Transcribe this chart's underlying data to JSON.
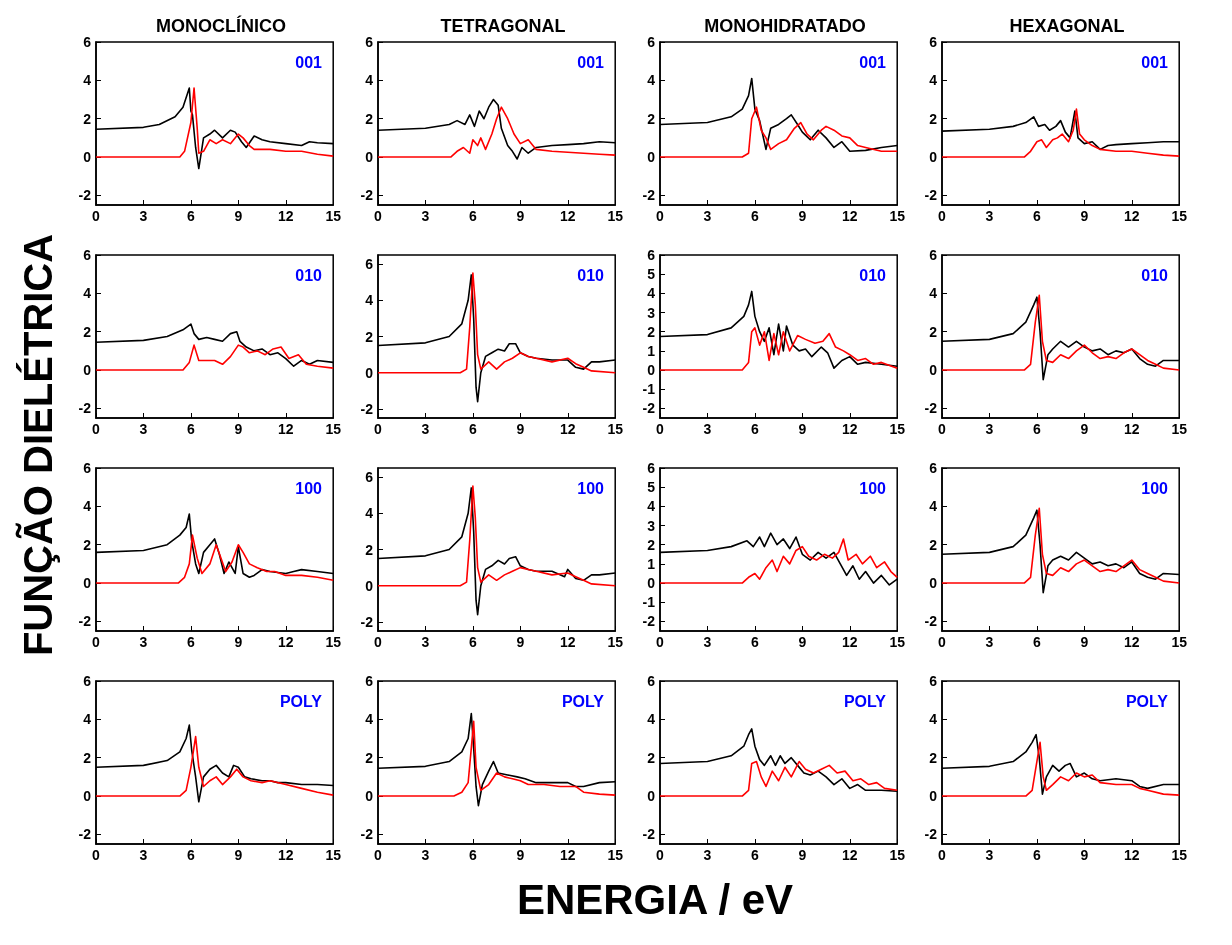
{
  "chart_data": [
    {
      "type": "line",
      "title": "MONOCLÍNICO",
      "ylabel": "FUNÇÃO DIELÉTRICA",
      "annotations": [
        "001"
      ],
      "xlim": [
        0,
        15
      ],
      "xticks": [
        0,
        3,
        6,
        9,
        12,
        15
      ],
      "ylim": [
        -2.5,
        6
      ],
      "yticks": [
        -2,
        0,
        2,
        4,
        6
      ],
      "grid": false,
      "series": [
        {
          "color": "#000000",
          "x": [
            0,
            3,
            4,
            5,
            5.5,
            5.9,
            6.0,
            6.1,
            6.3,
            6.5,
            6.8,
            7.2,
            7.5,
            8,
            8.5,
            8.8,
            9.2,
            9.5,
            10,
            10.5,
            11,
            12,
            13,
            13.5,
            14,
            15
          ],
          "values": [
            1.45,
            1.55,
            1.7,
            2.1,
            2.6,
            3.6,
            2.4,
            2.2,
            0.5,
            -0.6,
            1.0,
            1.2,
            1.4,
            1.0,
            1.4,
            1.3,
            0.8,
            0.5,
            1.1,
            0.9,
            0.8,
            0.7,
            0.6,
            0.8,
            0.75,
            0.7
          ]
        },
        {
          "color": "#ff0000",
          "x": [
            0,
            5.3,
            5.6,
            6.0,
            6.2,
            6.4,
            6.5,
            6.8,
            7.2,
            7.6,
            8,
            8.5,
            9,
            9.3,
            9.7,
            10,
            11,
            12,
            13,
            14,
            15
          ],
          "values": [
            0,
            0,
            0.3,
            1.8,
            3.6,
            1.5,
            0.2,
            0.3,
            0.9,
            0.7,
            0.9,
            0.7,
            1.2,
            1.0,
            0.6,
            0.4,
            0.4,
            0.3,
            0.3,
            0.15,
            0.05
          ]
        }
      ]
    },
    {
      "type": "line",
      "title": "TETRAGONAL",
      "annotations": [
        "001"
      ],
      "xlim": [
        0,
        15
      ],
      "xticks": [
        0,
        3,
        6,
        9,
        12,
        15
      ],
      "ylim": [
        -2.5,
        6
      ],
      "yticks": [
        -2,
        0,
        2,
        4,
        6
      ],
      "grid": false,
      "series": [
        {
          "color": "#000000",
          "x": [
            0,
            3,
            4.5,
            5,
            5.5,
            5.8,
            6.1,
            6.4,
            6.7,
            7.0,
            7.3,
            7.6,
            7.8,
            8.2,
            8.5,
            8.8,
            9.1,
            9.5,
            10,
            11,
            12,
            13,
            14,
            15
          ],
          "values": [
            1.4,
            1.5,
            1.7,
            1.9,
            1.7,
            2.2,
            1.6,
            2.4,
            2.0,
            2.6,
            3.0,
            2.7,
            1.5,
            0.6,
            0.3,
            -0.1,
            0.5,
            0.2,
            0.5,
            0.6,
            0.65,
            0.7,
            0.8,
            0.75
          ]
        },
        {
          "color": "#ff0000",
          "x": [
            0,
            4.6,
            5,
            5.4,
            5.8,
            6.0,
            6.3,
            6.5,
            6.8,
            7.2,
            7.5,
            7.8,
            8.2,
            8.6,
            9.0,
            9.5,
            10,
            11,
            12,
            13,
            14,
            15
          ],
          "values": [
            0,
            0,
            0.3,
            0.5,
            0.2,
            0.9,
            0.6,
            1.0,
            0.4,
            1.2,
            2.0,
            2.6,
            2.0,
            1.2,
            0.7,
            0.9,
            0.4,
            0.3,
            0.25,
            0.2,
            0.15,
            0.1
          ]
        }
      ]
    },
    {
      "type": "line",
      "title": "MONOHIDRATADO",
      "annotations": [
        "001"
      ],
      "xlim": [
        0,
        15
      ],
      "xticks": [
        0,
        3,
        6,
        9,
        12,
        15
      ],
      "ylim": [
        -2.5,
        6
      ],
      "yticks": [
        -2,
        0,
        2,
        4,
        6
      ],
      "grid": false,
      "series": [
        {
          "color": "#000000",
          "x": [
            0,
            3,
            4.5,
            5.2,
            5.6,
            5.8,
            6.0,
            6.3,
            6.7,
            7.0,
            7.5,
            8.0,
            8.3,
            8.7,
            9.0,
            9.5,
            10,
            10.5,
            11,
            11.5,
            12,
            13,
            14,
            15
          ],
          "values": [
            1.7,
            1.8,
            2.1,
            2.5,
            3.2,
            4.1,
            2.5,
            1.9,
            0.4,
            1.5,
            1.7,
            2.0,
            2.2,
            1.7,
            1.3,
            0.9,
            1.4,
            1.0,
            0.5,
            0.8,
            0.3,
            0.35,
            0.5,
            0.6
          ]
        },
        {
          "color": "#ff0000",
          "x": [
            0,
            5.2,
            5.6,
            5.8,
            6.1,
            6.4,
            6.7,
            7.0,
            7.5,
            8,
            8.5,
            8.9,
            9.3,
            9.7,
            10.2,
            10.5,
            11,
            11.5,
            12,
            12.5,
            13,
            14,
            15
          ],
          "values": [
            0,
            0,
            0.2,
            2.0,
            2.6,
            1.4,
            1.0,
            0.4,
            0.7,
            0.9,
            1.5,
            1.8,
            1.2,
            0.9,
            1.4,
            1.6,
            1.4,
            1.1,
            1.0,
            0.6,
            0.5,
            0.3,
            0.3
          ]
        }
      ]
    },
    {
      "type": "line",
      "title": "HEXAGONAL",
      "annotations": [
        "001"
      ],
      "xlim": [
        0,
        15
      ],
      "xticks": [
        0,
        3,
        6,
        9,
        12,
        15
      ],
      "ylim": [
        -2.5,
        6
      ],
      "yticks": [
        -2,
        0,
        2,
        4,
        6
      ],
      "grid": false,
      "series": [
        {
          "color": "#000000",
          "x": [
            0,
            3,
            4.5,
            5.3,
            5.8,
            6.1,
            6.5,
            6.8,
            7.2,
            7.5,
            7.8,
            8.1,
            8.4,
            8.6,
            9,
            9.5,
            10,
            10.5,
            11,
            12,
            13,
            14,
            15
          ],
          "values": [
            1.35,
            1.45,
            1.6,
            1.8,
            2.1,
            1.6,
            1.7,
            1.4,
            1.6,
            1.9,
            1.3,
            1.0,
            2.4,
            1.0,
            0.7,
            0.8,
            0.4,
            0.6,
            0.65,
            0.7,
            0.75,
            0.8,
            0.8
          ]
        },
        {
          "color": "#ff0000",
          "x": [
            0,
            5.2,
            5.6,
            6.0,
            6.3,
            6.6,
            7.0,
            7.3,
            7.6,
            8.0,
            8.3,
            8.5,
            8.7,
            9,
            9.5,
            10,
            11,
            12,
            13,
            14,
            15
          ],
          "values": [
            0,
            0,
            0.3,
            0.8,
            0.9,
            0.5,
            0.9,
            1.0,
            1.2,
            0.8,
            1.4,
            2.5,
            1.2,
            0.9,
            0.6,
            0.4,
            0.3,
            0.3,
            0.2,
            0.1,
            0.05
          ]
        }
      ]
    },
    {
      "type": "line",
      "annotations": [
        "010"
      ],
      "xlim": [
        0,
        15
      ],
      "xticks": [
        0,
        3,
        6,
        9,
        12,
        15
      ],
      "ylim": [
        -2.5,
        6
      ],
      "yticks": [
        -2,
        0,
        2,
        4,
        6
      ],
      "grid": false,
      "series": [
        {
          "color": "#000000",
          "x": [
            0,
            3,
            4.5,
            5.5,
            6.0,
            6.2,
            6.5,
            7,
            7.5,
            8,
            8.5,
            8.9,
            9.1,
            9.5,
            10,
            10.5,
            11,
            11.5,
            12,
            12.5,
            13,
            13.5,
            14,
            15
          ],
          "values": [
            1.45,
            1.55,
            1.75,
            2.1,
            2.4,
            1.9,
            1.6,
            1.7,
            1.6,
            1.5,
            1.9,
            2.0,
            1.5,
            1.2,
            1.0,
            1.1,
            0.8,
            0.9,
            0.6,
            0.2,
            0.5,
            0.3,
            0.5,
            0.4
          ]
        },
        {
          "color": "#ff0000",
          "x": [
            0,
            5.5,
            5.9,
            6.2,
            6.5,
            7,
            7.5,
            8,
            8.5,
            9,
            9.3,
            9.7,
            10.2,
            10.7,
            11.2,
            11.7,
            12.2,
            12.8,
            13.3,
            14,
            15
          ],
          "values": [
            0,
            0,
            0.4,
            1.3,
            0.5,
            0.5,
            0.5,
            0.3,
            0.7,
            1.3,
            1.2,
            0.9,
            1.0,
            0.8,
            1.1,
            1.2,
            0.6,
            0.8,
            0.3,
            0.2,
            0.1
          ]
        }
      ]
    },
    {
      "type": "line",
      "annotations": [
        "010"
      ],
      "xlim": [
        0,
        15
      ],
      "xticks": [
        0,
        3,
        6,
        9,
        12,
        15
      ],
      "ylim": [
        -2.5,
        6.5
      ],
      "yticks": [
        -2,
        0,
        2,
        4,
        6
      ],
      "grid": false,
      "series": [
        {
          "color": "#000000",
          "x": [
            0,
            3,
            4.5,
            5.3,
            5.7,
            5.9,
            6.05,
            6.2,
            6.3,
            6.5,
            6.8,
            7.2,
            7.6,
            8.0,
            8.3,
            8.7,
            9.0,
            9.5,
            10,
            11,
            12,
            12.5,
            13,
            13.5,
            14,
            15
          ],
          "values": [
            1.5,
            1.65,
            2.0,
            2.7,
            4.0,
            5.4,
            3.0,
            -0.8,
            -1.6,
            0.0,
            0.9,
            1.1,
            1.3,
            1.2,
            1.6,
            1.6,
            1.1,
            0.9,
            0.8,
            0.7,
            0.7,
            0.3,
            0.2,
            0.6,
            0.6,
            0.7
          ]
        },
        {
          "color": "#ff0000",
          "x": [
            0,
            5.2,
            5.6,
            5.8,
            6.0,
            6.15,
            6.3,
            6.5,
            7,
            7.5,
            8,
            8.5,
            9,
            9.5,
            10,
            11,
            12,
            12.5,
            13,
            13.5,
            15
          ],
          "values": [
            0,
            0,
            0.2,
            2.5,
            5.5,
            3.8,
            1.0,
            0.2,
            0.6,
            0.2,
            0.6,
            0.8,
            1.1,
            0.9,
            0.8,
            0.6,
            0.8,
            0.5,
            0.3,
            0.1,
            0.0
          ]
        }
      ]
    },
    {
      "type": "line",
      "annotations": [
        "010"
      ],
      "xlim": [
        0,
        15
      ],
      "xticks": [
        0,
        3,
        6,
        9,
        12,
        15
      ],
      "ylim": [
        -2.5,
        6
      ],
      "yticks": [
        -2,
        -1,
        0,
        1,
        2,
        3,
        4,
        5,
        6
      ],
      "grid": false,
      "series": [
        {
          "color": "#000000",
          "x": [
            0,
            3,
            4.5,
            5.3,
            5.6,
            5.8,
            6.0,
            6.3,
            6.6,
            6.9,
            7.2,
            7.5,
            7.8,
            8.0,
            8.4,
            8.8,
            9.2,
            9.6,
            10.2,
            10.6,
            11,
            11.5,
            12,
            12.5,
            13,
            14,
            15
          ],
          "values": [
            1.75,
            1.85,
            2.2,
            2.8,
            3.4,
            4.1,
            2.8,
            2.0,
            1.5,
            2.2,
            0.8,
            2.4,
            1.0,
            2.3,
            1.3,
            1.0,
            1.1,
            0.7,
            1.2,
            0.9,
            0.1,
            0.5,
            0.7,
            0.3,
            0.4,
            0.3,
            0.2
          ]
        },
        {
          "color": "#ff0000",
          "x": [
            0,
            5.2,
            5.6,
            5.8,
            6.0,
            6.3,
            6.6,
            6.9,
            7.2,
            7.5,
            7.8,
            8.2,
            8.7,
            9.2,
            9.8,
            10.3,
            10.7,
            11.1,
            11.6,
            12,
            12.5,
            13,
            13.5,
            14,
            15
          ],
          "values": [
            0,
            0,
            0.4,
            2.0,
            2.2,
            1.3,
            2.0,
            0.5,
            1.9,
            0.8,
            2.0,
            1.0,
            1.8,
            1.6,
            1.4,
            1.5,
            1.9,
            1.2,
            1.0,
            0.8,
            0.5,
            0.6,
            0.3,
            0.4,
            0.1
          ]
        }
      ]
    },
    {
      "type": "line",
      "annotations": [
        "010"
      ],
      "xlim": [
        0,
        15
      ],
      "xticks": [
        0,
        3,
        6,
        9,
        12,
        15
      ],
      "ylim": [
        -2.5,
        6
      ],
      "yticks": [
        -2,
        0,
        2,
        4,
        6
      ],
      "grid": false,
      "series": [
        {
          "color": "#000000",
          "x": [
            0,
            3,
            4.5,
            5.3,
            5.8,
            6.0,
            6.2,
            6.4,
            6.7,
            7.0,
            7.5,
            8,
            8.5,
            9.0,
            9.5,
            10,
            10.5,
            11,
            11.5,
            12,
            12.5,
            13,
            13.5,
            14,
            15
          ],
          "values": [
            1.5,
            1.6,
            1.9,
            2.5,
            3.4,
            3.8,
            2.0,
            -0.5,
            0.8,
            1.1,
            1.5,
            1.2,
            1.5,
            1.2,
            1.0,
            1.1,
            0.8,
            1.0,
            0.9,
            1.1,
            0.6,
            0.3,
            0.2,
            0.5,
            0.5
          ]
        },
        {
          "color": "#ff0000",
          "x": [
            0,
            5.2,
            5.6,
            5.9,
            6.15,
            6.35,
            6.6,
            7,
            7.5,
            8,
            8.5,
            9,
            9.5,
            10,
            10.5,
            11,
            11.5,
            12,
            12.5,
            13,
            13.5,
            14,
            15
          ],
          "values": [
            0,
            0,
            0.3,
            2.5,
            3.9,
            1.5,
            0.5,
            0.4,
            0.8,
            0.6,
            1.0,
            1.3,
            0.9,
            0.6,
            0.7,
            0.6,
            0.9,
            1.1,
            0.8,
            0.5,
            0.3,
            0.1,
            0.0
          ]
        }
      ]
    },
    {
      "type": "line",
      "annotations": [
        "100"
      ],
      "xlim": [
        0,
        15
      ],
      "xticks": [
        0,
        3,
        6,
        9,
        12,
        15
      ],
      "ylim": [
        -2.5,
        6
      ],
      "yticks": [
        -2,
        0,
        2,
        4,
        6
      ],
      "grid": false,
      "series": [
        {
          "color": "#000000",
          "x": [
            0,
            3,
            4.5,
            5.3,
            5.7,
            5.9,
            6.05,
            6.3,
            6.5,
            6.8,
            7.2,
            7.5,
            7.8,
            8.1,
            8.4,
            8.8,
            9.0,
            9.3,
            9.7,
            10,
            10.5,
            11,
            12,
            12.5,
            13,
            14,
            15
          ],
          "values": [
            1.6,
            1.7,
            2.0,
            2.5,
            2.9,
            3.6,
            2.2,
            1.0,
            0.5,
            1.6,
            2.0,
            2.3,
            1.5,
            0.5,
            1.1,
            0.5,
            1.9,
            0.5,
            0.3,
            0.4,
            0.7,
            0.6,
            0.5,
            0.6,
            0.7,
            0.6,
            0.5
          ]
        },
        {
          "color": "#ff0000",
          "x": [
            0,
            5.2,
            5.6,
            5.9,
            6.1,
            6.4,
            6.7,
            7.2,
            7.6,
            7.9,
            8.2,
            8.6,
            9.0,
            9.3,
            9.7,
            10.2,
            10.8,
            11.3,
            12,
            13,
            14,
            15
          ],
          "values": [
            0,
            0,
            0.3,
            1.0,
            2.5,
            1.3,
            0.5,
            1.0,
            2.0,
            1.3,
            0.6,
            1.1,
            2.0,
            1.6,
            1.0,
            0.8,
            0.6,
            0.6,
            0.4,
            0.4,
            0.3,
            0.15
          ]
        }
      ]
    },
    {
      "type": "line",
      "annotations": [
        "100"
      ],
      "xlim": [
        0,
        15
      ],
      "xticks": [
        0,
        3,
        6,
        9,
        12,
        15
      ],
      "ylim": [
        -2.5,
        6.5
      ],
      "yticks": [
        -2,
        0,
        2,
        4,
        6
      ],
      "grid": false,
      "series": [
        {
          "color": "#000000",
          "x": [
            0,
            3,
            4.5,
            5.3,
            5.7,
            5.9,
            6.05,
            6.2,
            6.3,
            6.5,
            6.8,
            7.2,
            7.6,
            8.0,
            8.3,
            8.7,
            9.0,
            9.5,
            10,
            11,
            11.8,
            12,
            12.5,
            13,
            13.5,
            14,
            15
          ],
          "values": [
            1.5,
            1.65,
            2.0,
            2.7,
            4.0,
            5.4,
            3.0,
            -0.8,
            -1.6,
            0.0,
            0.9,
            1.1,
            1.4,
            1.2,
            1.5,
            1.6,
            1.1,
            0.9,
            0.8,
            0.8,
            0.5,
            0.9,
            0.4,
            0.3,
            0.6,
            0.6,
            0.7
          ]
        },
        {
          "color": "#ff0000",
          "x": [
            0,
            5.2,
            5.6,
            5.8,
            6.0,
            6.15,
            6.3,
            6.5,
            7,
            7.5,
            8,
            8.5,
            9,
            9.5,
            10,
            11,
            12,
            12.5,
            13,
            13.5,
            15
          ],
          "values": [
            0,
            0,
            0.2,
            2.5,
            5.5,
            3.8,
            1.0,
            0.2,
            0.6,
            0.3,
            0.6,
            0.8,
            1.0,
            0.9,
            0.8,
            0.6,
            0.7,
            0.5,
            0.3,
            0.1,
            0.0
          ]
        }
      ]
    },
    {
      "type": "line",
      "annotations": [
        "100"
      ],
      "xlim": [
        0,
        15
      ],
      "xticks": [
        0,
        3,
        6,
        9,
        12,
        15
      ],
      "ylim": [
        -2.5,
        6
      ],
      "yticks": [
        -2,
        -1,
        0,
        1,
        2,
        3,
        4,
        5,
        6
      ],
      "grid": false,
      "series": [
        {
          "color": "#000000",
          "x": [
            0,
            3,
            4.5,
            5.5,
            5.9,
            6.3,
            6.6,
            7.0,
            7.4,
            7.8,
            8.2,
            8.6,
            9.0,
            9.5,
            10,
            10.5,
            11,
            11.4,
            11.8,
            12.2,
            12.6,
            13,
            13.5,
            14,
            14.5,
            15
          ],
          "values": [
            1.6,
            1.7,
            1.9,
            2.2,
            1.9,
            2.4,
            1.9,
            2.6,
            2.0,
            2.3,
            1.8,
            2.4,
            1.5,
            1.2,
            1.6,
            1.3,
            1.6,
            1.0,
            0.4,
            0.9,
            0.2,
            0.6,
            0.0,
            0.4,
            -0.1,
            0.2
          ]
        },
        {
          "color": "#ff0000",
          "x": [
            0,
            5.2,
            5.6,
            6.0,
            6.3,
            6.7,
            7.1,
            7.4,
            7.8,
            8.2,
            8.6,
            9.0,
            9.4,
            9.9,
            10.4,
            10.9,
            11.3,
            11.6,
            11.9,
            12.4,
            12.8,
            13.3,
            13.7,
            14.2,
            14.6,
            15
          ],
          "values": [
            0,
            0,
            0.3,
            0.5,
            0.2,
            0.8,
            1.2,
            0.6,
            1.4,
            1.0,
            1.7,
            1.9,
            1.4,
            1.2,
            1.5,
            1.3,
            1.6,
            2.3,
            1.2,
            1.5,
            1.0,
            1.4,
            0.8,
            1.1,
            0.6,
            0.3
          ]
        }
      ]
    },
    {
      "type": "line",
      "annotations": [
        "100"
      ],
      "xlim": [
        0,
        15
      ],
      "xticks": [
        0,
        3,
        6,
        9,
        12,
        15
      ],
      "ylim": [
        -2.5,
        6
      ],
      "yticks": [
        -2,
        0,
        2,
        4,
        6
      ],
      "grid": false,
      "series": [
        {
          "color": "#000000",
          "x": [
            0,
            3,
            4.5,
            5.3,
            5.8,
            6.0,
            6.2,
            6.4,
            6.7,
            7.0,
            7.5,
            8,
            8.5,
            9,
            9.5,
            10,
            10.5,
            11,
            11.5,
            12,
            12.5,
            13,
            13.5,
            14,
            15
          ],
          "values": [
            1.5,
            1.6,
            1.9,
            2.5,
            3.4,
            3.8,
            2.0,
            -0.5,
            0.9,
            1.2,
            1.4,
            1.2,
            1.6,
            1.3,
            1.0,
            1.1,
            0.9,
            1.0,
            0.8,
            1.1,
            0.5,
            0.3,
            0.2,
            0.5,
            0.45
          ]
        },
        {
          "color": "#ff0000",
          "x": [
            0,
            5.2,
            5.6,
            5.9,
            6.15,
            6.35,
            6.6,
            7,
            7.5,
            8,
            8.5,
            9,
            9.5,
            10,
            10.5,
            11,
            11.5,
            12,
            12.5,
            13,
            13.5,
            14,
            15
          ],
          "values": [
            0,
            0,
            0.3,
            2.5,
            3.9,
            1.5,
            0.5,
            0.4,
            0.8,
            0.6,
            1.0,
            1.2,
            0.9,
            0.6,
            0.7,
            0.6,
            0.9,
            1.2,
            0.7,
            0.5,
            0.3,
            0.1,
            0.0
          ]
        }
      ]
    },
    {
      "type": "line",
      "annotations": [
        "POLY"
      ],
      "xlim": [
        0,
        15
      ],
      "xticks": [
        0,
        3,
        6,
        9,
        12,
        15
      ],
      "ylim": [
        -2.5,
        6
      ],
      "yticks": [
        -2,
        0,
        2,
        4,
        6
      ],
      "grid": false,
      "series": [
        {
          "color": "#000000",
          "x": [
            0,
            3,
            4.5,
            5.3,
            5.7,
            5.9,
            6.05,
            6.3,
            6.5,
            6.8,
            7.2,
            7.6,
            8.0,
            8.4,
            8.7,
            9.0,
            9.4,
            9.8,
            10.5,
            11,
            11.5,
            12,
            13,
            14,
            15
          ],
          "values": [
            1.5,
            1.6,
            1.85,
            2.3,
            3.0,
            3.7,
            2.4,
            1.0,
            -0.3,
            1.0,
            1.4,
            1.6,
            1.2,
            1.0,
            1.6,
            1.5,
            1.0,
            0.9,
            0.8,
            0.8,
            0.7,
            0.7,
            0.6,
            0.6,
            0.55
          ]
        },
        {
          "color": "#ff0000",
          "x": [
            0,
            5.3,
            5.7,
            6.0,
            6.3,
            6.5,
            6.8,
            7.2,
            7.6,
            8,
            8.5,
            8.9,
            9.3,
            9.8,
            10.5,
            11,
            12,
            13,
            14,
            15
          ],
          "values": [
            0,
            0,
            0.3,
            1.5,
            3.1,
            1.5,
            0.5,
            0.8,
            1.0,
            0.6,
            1.0,
            1.4,
            1.0,
            0.8,
            0.7,
            0.8,
            0.6,
            0.4,
            0.2,
            0.05
          ]
        }
      ]
    },
    {
      "type": "line",
      "xlabel": "ENERGIA / eV",
      "annotations": [
        "POLY"
      ],
      "xlim": [
        0,
        15
      ],
      "xticks": [
        0,
        3,
        6,
        9,
        12,
        15
      ],
      "ylim": [
        -2.5,
        6
      ],
      "yticks": [
        -2,
        0,
        2,
        4,
        6
      ],
      "grid": false,
      "series": [
        {
          "color": "#000000",
          "x": [
            0,
            3,
            4.5,
            5.3,
            5.7,
            5.9,
            6.05,
            6.2,
            6.35,
            6.6,
            7.0,
            7.3,
            7.6,
            8.2,
            8.8,
            9.3,
            10,
            11,
            12,
            12.5,
            13,
            14,
            15
          ],
          "values": [
            1.45,
            1.55,
            1.8,
            2.3,
            3.0,
            4.3,
            2.5,
            0.5,
            -0.5,
            0.6,
            1.3,
            1.8,
            1.2,
            1.1,
            1.0,
            0.9,
            0.7,
            0.7,
            0.7,
            0.5,
            0.5,
            0.7,
            0.75
          ]
        },
        {
          "color": "#ff0000",
          "x": [
            0,
            4.8,
            5.3,
            5.7,
            5.9,
            6.05,
            6.2,
            6.5,
            7,
            7.5,
            8,
            8.5,
            9,
            9.5,
            10.5,
            11.5,
            12.5,
            13,
            14,
            15
          ],
          "values": [
            0,
            0,
            0.2,
            0.7,
            2.5,
            3.9,
            1.5,
            0.3,
            0.6,
            1.2,
            1.0,
            0.9,
            0.8,
            0.6,
            0.6,
            0.5,
            0.5,
            0.2,
            0.1,
            0.05
          ]
        }
      ]
    },
    {
      "type": "line",
      "annotations": [
        "POLY"
      ],
      "xlim": [
        0,
        15
      ],
      "xticks": [
        0,
        3,
        6,
        9,
        12,
        15
      ],
      "ylim": [
        -2.5,
        6
      ],
      "yticks": [
        -2,
        0,
        2,
        4,
        6
      ],
      "grid": false,
      "series": [
        {
          "color": "#000000",
          "x": [
            0,
            3,
            4.5,
            5.3,
            5.6,
            5.8,
            6.0,
            6.3,
            6.6,
            7.0,
            7.3,
            7.6,
            7.9,
            8.3,
            8.7,
            9.1,
            9.5,
            10,
            10.5,
            11,
            11.5,
            12,
            12.5,
            13,
            14,
            15
          ],
          "values": [
            1.7,
            1.8,
            2.1,
            2.6,
            3.2,
            3.5,
            2.6,
            1.9,
            1.6,
            2.1,
            1.6,
            2.1,
            1.7,
            2.0,
            1.6,
            1.2,
            1.1,
            1.3,
            1.0,
            0.6,
            0.9,
            0.4,
            0.6,
            0.3,
            0.3,
            0.25
          ]
        },
        {
          "color": "#ff0000",
          "x": [
            0,
            5.2,
            5.6,
            5.8,
            6.1,
            6.4,
            6.7,
            7.1,
            7.5,
            7.9,
            8.3,
            8.8,
            9.2,
            9.7,
            10.2,
            10.7,
            11.2,
            11.7,
            12.2,
            12.7,
            13.2,
            13.7,
            14.2,
            15
          ],
          "values": [
            0,
            0,
            0.3,
            1.7,
            1.8,
            1.0,
            0.5,
            1.3,
            0.8,
            1.5,
            1.0,
            1.8,
            1.4,
            1.2,
            1.4,
            1.6,
            1.2,
            1.3,
            0.8,
            0.9,
            0.6,
            0.7,
            0.4,
            0.3
          ]
        }
      ]
    },
    {
      "type": "line",
      "annotations": [
        "POLY"
      ],
      "xlim": [
        0,
        15
      ],
      "xticks": [
        0,
        3,
        6,
        9,
        12,
        15
      ],
      "ylim": [
        -2.5,
        6
      ],
      "yticks": [
        -2,
        0,
        2,
        4,
        6
      ],
      "grid": false,
      "series": [
        {
          "color": "#000000",
          "x": [
            0,
            3,
            4.5,
            5.3,
            5.7,
            5.95,
            6.15,
            6.35,
            6.6,
            7.0,
            7.4,
            7.8,
            8.1,
            8.5,
            9,
            9.5,
            10,
            11,
            12,
            12.5,
            13,
            14,
            15
          ],
          "values": [
            1.45,
            1.55,
            1.8,
            2.3,
            2.8,
            3.2,
            2.0,
            0.1,
            1.0,
            1.6,
            1.3,
            1.6,
            1.7,
            1.0,
            1.2,
            0.9,
            0.8,
            0.9,
            0.8,
            0.5,
            0.4,
            0.6,
            0.6
          ]
        },
        {
          "color": "#ff0000",
          "x": [
            0,
            5.3,
            5.7,
            6.0,
            6.2,
            6.4,
            6.6,
            7,
            7.5,
            8,
            8.5,
            9,
            9.5,
            10,
            11,
            12,
            12.5,
            13,
            14,
            15
          ],
          "values": [
            0,
            0,
            0.3,
            1.8,
            2.8,
            1.0,
            0.3,
            0.6,
            1.0,
            0.8,
            1.2,
            1.0,
            1.1,
            0.7,
            0.6,
            0.6,
            0.4,
            0.3,
            0.1,
            0.05
          ]
        }
      ]
    }
  ]
}
